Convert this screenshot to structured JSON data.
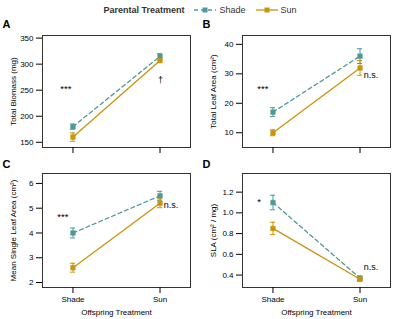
{
  "chart_data": [
    {
      "type": "line",
      "title": "A",
      "ylabel": "Total Biomass (mg)",
      "categories": [
        "Shade",
        "Sun"
      ],
      "series": [
        {
          "name": "Shade",
          "color": "#4d9999",
          "values": [
            180,
            315
          ],
          "errors": [
            5,
            5
          ],
          "line_style": "dashed",
          "marker": "square"
        },
        {
          "name": "Sun",
          "color": "#c8940a",
          "values": [
            160,
            307
          ],
          "errors": [
            8,
            4
          ],
          "line_style": "solid",
          "marker": "square"
        }
      ],
      "ylim": [
        140,
        355
      ],
      "yticks": [
        150,
        200,
        250,
        300,
        350
      ],
      "annotations": [
        {
          "text": "***"
        },
        {
          "text": "†"
        }
      ],
      "legend": "top",
      "legend_title": "Parental Treatment",
      "grid": false,
      "tick_labels": "y"
    },
    {
      "type": "line",
      "title": "B",
      "ylabel": "Total Leaf Area (cm²)",
      "categories": [
        "Shade",
        "Sun"
      ],
      "series": [
        {
          "name": "Shade",
          "color": "#4d9999",
          "values": [
            17,
            36
          ],
          "errors": [
            1.5,
            2.5
          ],
          "line_style": "dashed",
          "marker": "square"
        },
        {
          "name": "Sun",
          "color": "#c8940a",
          "values": [
            10,
            32
          ],
          "errors": [
            1.0,
            2.5
          ],
          "line_style": "solid",
          "marker": "square"
        }
      ],
      "ylim": [
        5,
        43
      ],
      "yticks": [
        10,
        20,
        30,
        40
      ],
      "annotations": [
        {
          "text": "***"
        },
        {
          "text": "n.s."
        }
      ],
      "legend": false,
      "grid": false,
      "tick_labels": "y"
    },
    {
      "type": "line",
      "title": "C",
      "ylabel": "Mean Single Leaf Area (cm²)",
      "xlabel": "Offspring Treatment",
      "categories": [
        "Shade",
        "Sun"
      ],
      "series": [
        {
          "name": "Shade",
          "color": "#4d9999",
          "values": [
            4.0,
            5.5
          ],
          "errors": [
            0.2,
            0.18
          ],
          "line_style": "dashed",
          "marker": "square"
        },
        {
          "name": "Sun",
          "color": "#c8940a",
          "values": [
            2.6,
            5.2
          ],
          "errors": [
            0.18,
            0.18
          ],
          "line_style": "solid",
          "marker": "square"
        }
      ],
      "ylim": [
        1.8,
        6.4
      ],
      "yticks": [
        2,
        3,
        4,
        5,
        6
      ],
      "annotations": [
        {
          "text": "***"
        },
        {
          "text": "n.s."
        }
      ],
      "legend": false,
      "grid": false
    },
    {
      "type": "line",
      "title": "D",
      "ylabel": "SLA (cm² / mg)",
      "xlabel": "Offspring Treatment",
      "categories": [
        "Shade",
        "Sun"
      ],
      "series": [
        {
          "name": "Shade",
          "color": "#4d9999",
          "values": [
            1.1,
            0.37
          ],
          "errors": [
            0.07,
            0.02
          ],
          "line_style": "dashed",
          "marker": "square"
        },
        {
          "name": "Sun",
          "color": "#c8940a",
          "values": [
            0.85,
            0.36
          ],
          "errors": [
            0.06,
            0.02
          ],
          "line_style": "solid",
          "marker": "square"
        }
      ],
      "ylim": [
        0.28,
        1.38
      ],
      "yticks": [
        0.4,
        0.6,
        0.8,
        {
          "value": 1.0,
          "label": "1.0"
        },
        1.2
      ],
      "annotations": [
        {
          "text": "*"
        },
        {
          "text": "n.s."
        }
      ],
      "legend": false,
      "grid": false
    }
  ]
}
